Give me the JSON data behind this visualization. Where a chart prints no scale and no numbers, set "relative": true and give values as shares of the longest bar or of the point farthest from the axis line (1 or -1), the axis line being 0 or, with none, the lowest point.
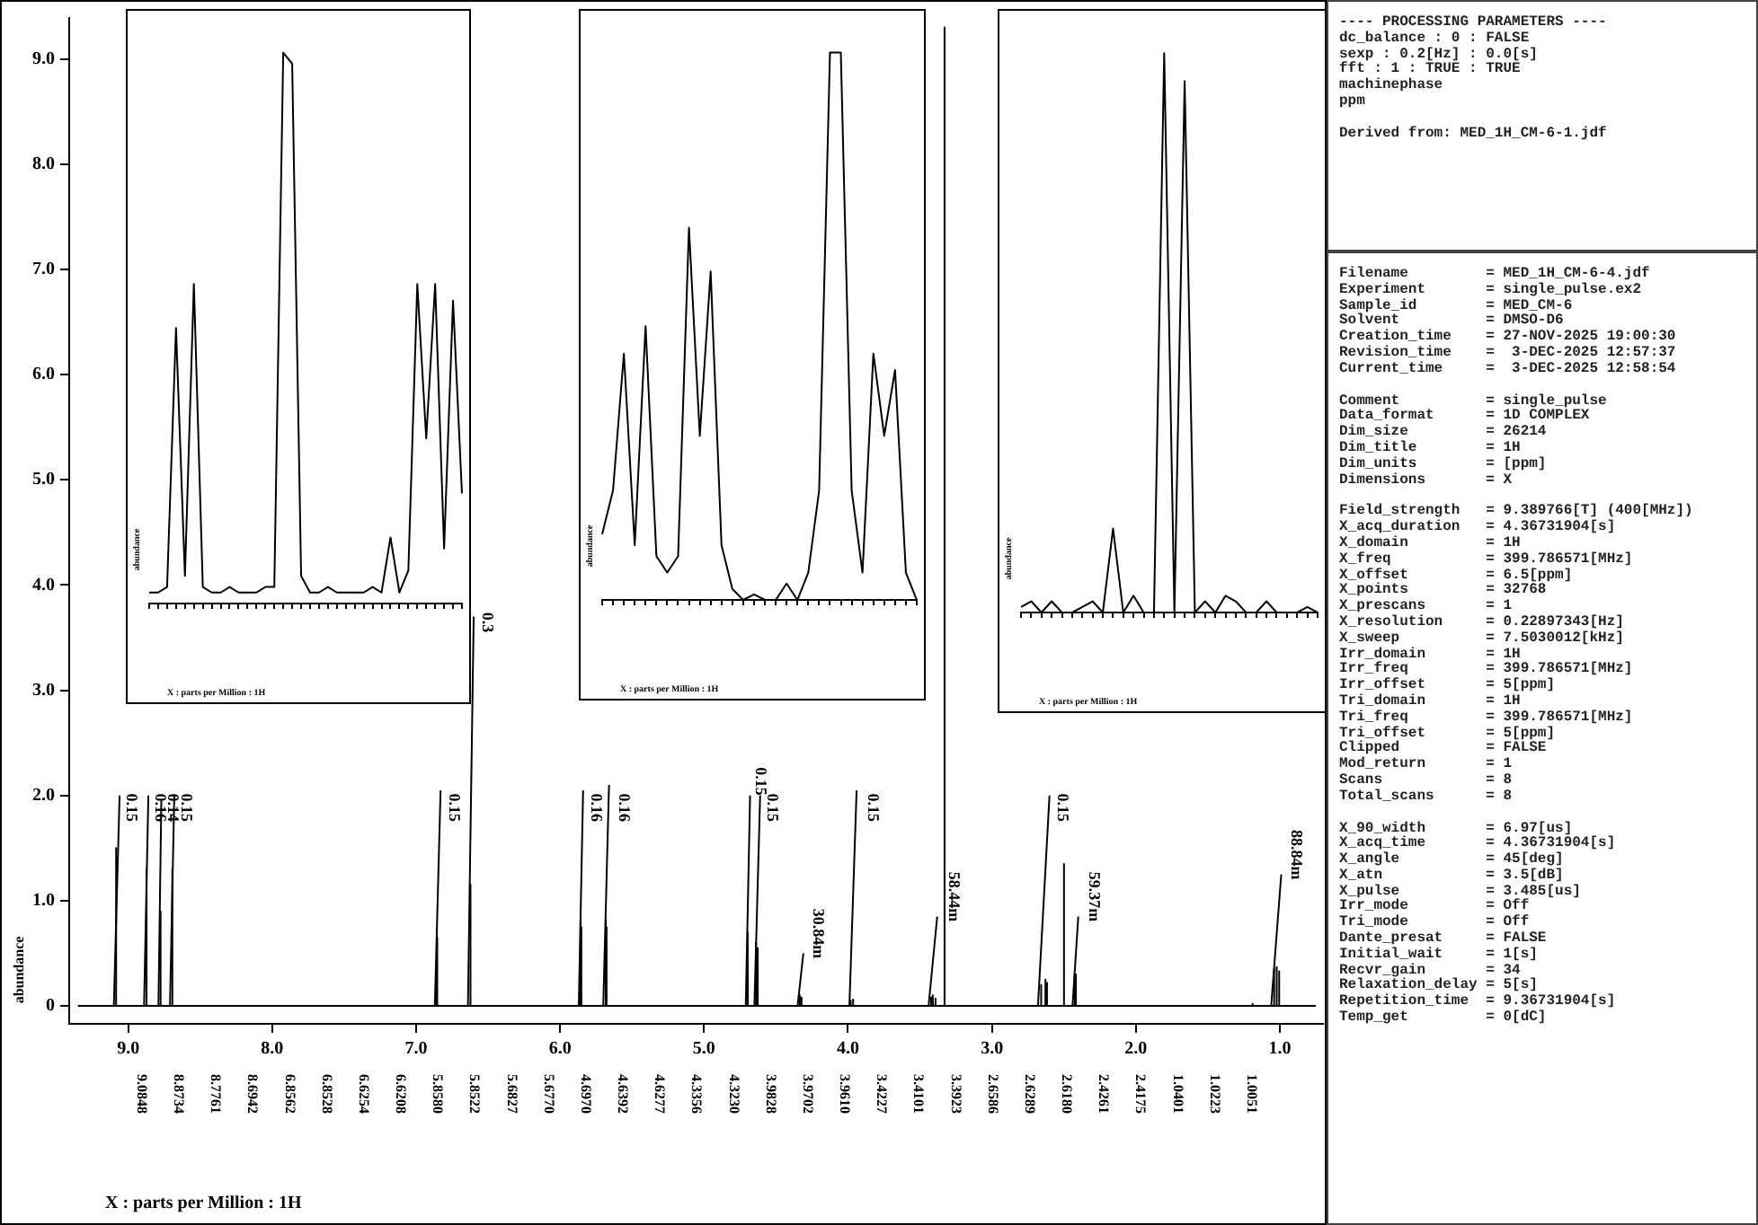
{
  "chart_data": [
    {
      "type": "line",
      "xlabel": "X : parts per Million : 1H",
      "ylabel": "abundance",
      "xlim": [
        9.41,
        0.7
      ],
      "xticks": [
        {
          "value": 9,
          "label": "9.0"
        },
        {
          "value": 8,
          "label": "8.0"
        },
        {
          "value": 7,
          "label": "7.0"
        },
        {
          "value": 6,
          "label": "6.0"
        },
        {
          "value": 5,
          "label": "5.0"
        },
        {
          "value": 4,
          "label": "4.0"
        },
        {
          "value": 3,
          "label": "3.0"
        },
        {
          "value": 2,
          "label": "2.0"
        },
        {
          "value": 1,
          "label": "1.0"
        }
      ],
      "ylim": [
        -0.17,
        9.39
      ],
      "yticks": [
        0,
        {
          "value": 1,
          "label": "1.0"
        },
        {
          "value": 2,
          "label": "2.0"
        },
        {
          "value": 3,
          "label": "3.0"
        },
        {
          "value": 4,
          "label": "4.0"
        },
        {
          "value": 5,
          "label": "5.0"
        },
        {
          "value": 6,
          "label": "6.0"
        },
        {
          "value": 7,
          "label": "7.0"
        },
        {
          "value": 8,
          "label": "8.0"
        },
        {
          "value": 9,
          "label": "9.0"
        }
      ],
      "grid": false,
      "legend": false,
      "marker": "none",
      "line_style": "solid",
      "series": [
        {
          "color": "#000000",
          "x": [
            9.35,
            9.0863,
            9.0848,
            9.0833,
            8.8749,
            8.8734,
            8.8719,
            8.7776,
            8.7761,
            8.7746,
            8.6957,
            8.6942,
            8.6927,
            6.8577,
            6.8562,
            6.8547,
            6.8543,
            6.8528,
            6.8513,
            6.6269,
            6.6254,
            6.6239,
            6.6223,
            6.6208,
            6.6193,
            5.8595,
            5.858,
            5.8565,
            5.8537,
            5.8522,
            5.8507,
            5.6842,
            5.6827,
            5.6812,
            5.6785,
            5.677,
            5.6755,
            4.6985,
            4.697,
            4.6955,
            4.6407,
            4.6392,
            4.6377,
            4.6292,
            4.6277,
            4.6262,
            4.3371,
            4.3356,
            4.3341,
            4.3245,
            4.323,
            4.3215,
            3.9843,
            3.9828,
            3.9813,
            3.9717,
            3.9702,
            3.9687,
            3.9625,
            3.961,
            3.9595,
            3.4242,
            3.4227,
            3.4212,
            3.4116,
            3.4101,
            3.4086,
            3.3938,
            3.3923,
            3.3908,
            3.332,
            3.33,
            3.328,
            2.6601,
            2.6586,
            2.6571,
            2.6304,
            2.6289,
            2.6274,
            2.6195,
            2.618,
            2.6165,
            2.5015,
            2.5,
            2.4985,
            2.4276,
            2.4261,
            2.4246,
            2.419,
            2.4175,
            2.416,
            1.192,
            1.19,
            1.188,
            1.0416,
            1.0401,
            1.0386,
            1.0238,
            1.0223,
            1.0208,
            1.0066,
            1.0051,
            1.0036,
            0.75
          ],
          "values": [
            0,
            0,
            1.5,
            0,
            0,
            1.3,
            0,
            0,
            0.9,
            0,
            0,
            1.3,
            0,
            0,
            0.65,
            0,
            0,
            0.65,
            0,
            0,
            1.15,
            0,
            0,
            1.15,
            0,
            0,
            0.8,
            0,
            0,
            0.75,
            0,
            0,
            0.82,
            0,
            0,
            0.75,
            0,
            0,
            0.7,
            0,
            0,
            0.6,
            0,
            0,
            0.55,
            0,
            0,
            0.1,
            0,
            0,
            0.08,
            0,
            0,
            0.05,
            0,
            0,
            0.06,
            0,
            0,
            0.05,
            0,
            0,
            0.08,
            0,
            0,
            0.1,
            0,
            0,
            0.07,
            0,
            0,
            9.3,
            0,
            0,
            0.2,
            0,
            0,
            0.25,
            0,
            0,
            0.22,
            0,
            0,
            1.35,
            0,
            0,
            0.3,
            0,
            0,
            0.3,
            0,
            0,
            0.02,
            0,
            0,
            0.35,
            0,
            0,
            0.37,
            0,
            0,
            0.33,
            0,
            0
          ]
        },
        {
          "color": "#000000",
          "x": [
            9.1,
            9.06,
            9.0,
            8.89,
            8.86,
            8.82,
            8.79,
            8.77,
            8.735,
            8.71,
            8.68,
            7.5,
            6.87,
            6.83,
            6.7,
            6.64,
            6.6,
            6.2,
            5.87,
            5.84,
            5.77,
            5.7,
            5.66,
            5.2,
            4.71,
            4.68,
            4.665,
            4.65,
            4.61,
            4.5,
            4.35,
            4.31,
            4.15,
            3.99,
            3.94,
            3.7,
            3.44,
            3.38,
            3.0,
            2.68,
            2.6,
            2.52,
            2.44,
            2.4,
            1.5,
            1.06,
            0.99
          ],
          "values": [
            0,
            2.0,
            null,
            0,
            2.0,
            null,
            0,
            1.95,
            null,
            0,
            2.0,
            null,
            0,
            2.05,
            null,
            0,
            3.7,
            null,
            0,
            2.05,
            null,
            0,
            2.1,
            null,
            0,
            2.0,
            null,
            0,
            2.0,
            null,
            0,
            0.5,
            null,
            0,
            2.05,
            null,
            0,
            0.85,
            null,
            0,
            2.0,
            null,
            0,
            0.85,
            null,
            0,
            1.25
          ]
        }
      ],
      "annotations": [
        "---- PROCESSING PARAMETERS ----\ndc_balance : 0 : FALSE\nsexp : 0.2[Hz] : 0.0[s]\nfft : 1 : TRUE : TRUE\nmachinephase\nppm\n\nDerived from: MED_1H_CM-6-1.jdf",
        "Filename         = MED_1H_CM-6-4.jdf\nExperiment       = single_pulse.ex2\nSample_id        = MED_CM-6\nSolvent          = DMSO-D6\nCreation_time    = 27-NOV-2025 19:00:30\nRevision_time    =  3-DEC-2025 12:57:37\nCurrent_time     =  3-DEC-2025 12:58:54",
        "Comment          = single_pulse\nData_format      = 1D COMPLEX\nDim_size         = 26214\nDim_title        = 1H\nDim_units        = [ppm]\nDimensions       = X",
        "Field_strength   = 9.389766[T] (400[MHz])\nX_acq_duration   = 4.36731904[s]\nX_domain         = 1H\nX_freq           = 399.786571[MHz]\nX_offset         = 6.5[ppm]\nX_points         = 32768\nX_prescans       = 1\nX_resolution     = 0.22897343[Hz]\nX_sweep          = 7.5030012[kHz]\nIrr_domain       = 1H\nIrr_freq         = 399.786571[MHz]\nIrr_offset       = 5[ppm]\nTri_domain       = 1H\nTri_freq         = 399.786571[MHz]\nTri_offset       = 5[ppm]\nClipped          = FALSE\nMod_return       = 1\nScans            = 8\nTotal_scans      = 8",
        "X_90_width       = 6.97[us]\nX_acq_time       = 4.36731904[s]\nX_angle          = 45[deg]\nX_atn            = 3.5[dB]\nX_pulse          = 3.485[us]\nIrr_mode         = Off\nTri_mode         = Off\nDante_presat     = FALSE\nInitial_wait     = 1[s]\nRecvr_gain       = 34\nRelaxation_delay = 5[s]\nRepetition_time  = 9.36731904[s]\nTemp_get         = 0[dC]",
        {
          "text": "0.15",
          "x": 9.05,
          "y": 1.75
        },
        {
          "text": "0.16",
          "x": 8.85,
          "y": 1.75
        },
        {
          "text": "0.14",
          "x": 8.76,
          "y": 1.75
        },
        {
          "text": "0.15",
          "x": 8.67,
          "y": 1.75
        },
        {
          "text": "0.15",
          "x": 6.81,
          "y": 1.75
        },
        {
          "text": "0.3",
          "x": 6.58,
          "y": 3.55
        },
        {
          "text": "0.16",
          "x": 5.82,
          "y": 1.75
        },
        {
          "text": "0.16",
          "x": 5.63,
          "y": 1.75
        },
        {
          "text": "0.15",
          "x": 4.68,
          "y": 2.0
        },
        {
          "text": "0.15",
          "x": 4.6,
          "y": 1.75
        },
        {
          "text": "30.84m",
          "x": 4.28,
          "y": 0.45
        },
        {
          "text": "0.15",
          "x": 3.9,
          "y": 1.75
        },
        {
          "text": "58.44m",
          "x": 3.34,
          "y": 0.8
        },
        {
          "text": "0.15",
          "x": 2.58,
          "y": 1.75
        },
        {
          "text": "59.37m",
          "x": 2.36,
          "y": 0.8
        },
        {
          "text": "88.84m",
          "x": 0.96,
          "y": 1.2
        },
        "9.0848",
        "8.8734",
        "8.7761",
        "8.6942",
        "6.8562",
        "6.8528",
        "6.6254",
        "6.6208",
        "5.8580",
        "5.8522",
        "5.6827",
        "5.6770",
        "4.6970",
        "4.6392",
        "4.6277",
        "4.3356",
        "4.3230",
        "3.9828",
        "3.9702",
        "3.9610",
        "3.4227",
        "3.4101",
        "3.3923",
        "2.6586",
        "2.6289",
        "2.6180",
        "2.4261",
        "2.4175",
        "1.0401",
        "1.0223",
        "1.0051"
      ]
    },
    {
      "type": "line",
      "relative": true,
      "xlabel": "X : parts per Million : 1H",
      "ylabel": "abundance",
      "grid": false,
      "legend": false,
      "marker": "none",
      "categories": [
        null,
        null,
        null,
        null,
        null,
        null,
        null,
        null,
        null,
        null,
        null,
        null,
        null,
        null,
        null,
        null,
        null,
        null,
        null,
        null,
        null,
        null,
        null,
        null,
        null,
        null,
        null,
        null,
        null,
        null,
        null,
        null,
        null,
        null,
        null,
        null
      ],
      "series": [
        {
          "color": "#000000",
          "values": [
            0.02,
            0.02,
            0.03,
            0.5,
            0.05,
            0.58,
            0.03,
            0.02,
            0.02,
            0.03,
            0.02,
            0.02,
            0.02,
            0.03,
            0.03,
            1.0,
            0.98,
            0.05,
            0.02,
            0.02,
            0.03,
            0.02,
            0.02,
            0.02,
            0.02,
            0.03,
            0.02,
            0.12,
            0.02,
            0.06,
            0.58,
            0.3,
            0.58,
            0.1,
            0.55,
            0.2
          ]
        }
      ]
    },
    {
      "type": "line",
      "relative": true,
      "xlabel": "X : parts per Million : 1H",
      "ylabel": "abundance",
      "grid": false,
      "legend": false,
      "marker": "none",
      "categories": [
        null,
        null,
        null,
        null,
        null,
        null,
        null,
        null,
        null,
        null,
        null,
        null,
        null,
        null,
        null,
        null,
        null,
        null,
        null,
        null,
        null,
        null,
        null,
        null,
        null,
        null,
        null,
        null,
        null,
        null
      ],
      "series": [
        {
          "color": "#000000",
          "values": [
            0.12,
            0.2,
            0.45,
            0.1,
            0.5,
            0.08,
            0.05,
            0.08,
            0.68,
            0.3,
            0.6,
            0.1,
            0.02,
            0.0,
            0.01,
            0.0,
            0.0,
            0.03,
            0.0,
            0.05,
            0.2,
            1.0,
            1.0,
            0.2,
            0.05,
            0.45,
            0.3,
            0.42,
            0.05,
            0.0
          ]
        }
      ]
    },
    {
      "type": "line",
      "relative": true,
      "xlabel": "X : parts per Million : 1H",
      "ylabel": "abundance",
      "grid": false,
      "legend": false,
      "marker": "none",
      "categories": [
        null,
        null,
        null,
        null,
        null,
        null,
        null,
        null,
        null,
        null,
        null,
        null,
        null,
        null,
        null,
        null,
        null,
        null,
        null,
        null,
        null,
        null,
        null,
        null,
        null,
        null,
        null,
        null,
        null,
        null
      ],
      "series": [
        {
          "color": "#000000",
          "values": [
            0.01,
            0.02,
            0.0,
            0.02,
            0.0,
            0.0,
            0.01,
            0.02,
            0.0,
            0.15,
            0.0,
            0.03,
            0.0,
            0.0,
            1.0,
            0.0,
            0.95,
            0.0,
            0.02,
            0.0,
            0.03,
            0.02,
            0.0,
            0.0,
            0.02,
            0.0,
            0.0,
            0.0,
            0.01,
            0.0
          ]
        }
      ]
    }
  ]
}
